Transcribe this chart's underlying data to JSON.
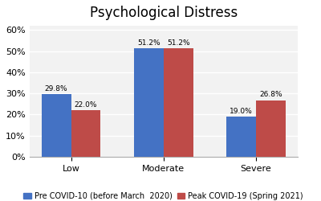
{
  "title": "Psychological Distress",
  "categories": [
    "Low",
    "Moderate",
    "Severe"
  ],
  "series": [
    {
      "label": "Pre COVID-10 (before March  2020)",
      "values": [
        29.8,
        51.2,
        19.0
      ],
      "color": "#4472C4"
    },
    {
      "label": "Peak COVID-19 (Spring 2021)",
      "values": [
        22.0,
        51.2,
        26.8
      ],
      "color": "#BE4B48"
    }
  ],
  "ylim": [
    0,
    62
  ],
  "yticks": [
    0,
    10,
    20,
    30,
    40,
    50,
    60
  ],
  "ytick_labels": [
    "0%",
    "10%",
    "20%",
    "30%",
    "40%",
    "50%",
    "60%"
  ],
  "bar_width": 0.32,
  "title_fontsize": 12,
  "tick_fontsize": 8,
  "annotation_fontsize": 6.5,
  "legend_fontsize": 7,
  "bg_color": "#F2F2F2",
  "fig_color": "#FFFFFF"
}
